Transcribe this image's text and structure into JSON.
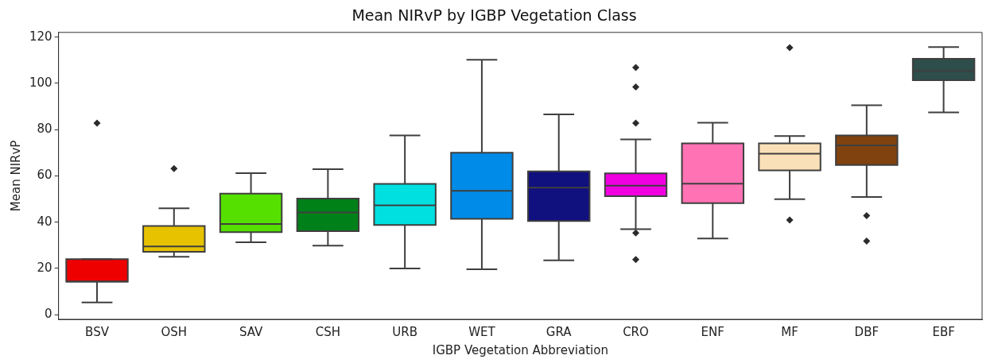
{
  "chart_data": {
    "type": "box",
    "title": "Mean NIRvP by IGBP Vegetation Class",
    "xlabel": "IGBP Vegetation Abbreviation",
    "ylabel": "Mean NIRvP",
    "categories": [
      "BSV",
      "OSH",
      "SAV",
      "CSH",
      "URB",
      "WET",
      "GRA",
      "CRO",
      "ENF",
      "MF",
      "DBF",
      "EBF"
    ],
    "colors": [
      "#ee0000",
      "#e6c200",
      "#55e000",
      "#008018",
      "#00e0e0",
      "#008be8",
      "#10107f",
      "#f000e0",
      "#ff72b4",
      "#fae0b8",
      "#80420f",
      "#2d4e4b"
    ],
    "boxes": [
      {
        "low": 5.3,
        "q1": 14.3,
        "median": 14.3,
        "q3": 24,
        "high": 24,
        "outliers": [
          82.8
        ]
      },
      {
        "low": 25,
        "q1": 27.2,
        "median": 29.5,
        "q3": 38.3,
        "high": 46,
        "outliers": [
          63.1
        ]
      },
      {
        "low": 31.3,
        "q1": 35.7,
        "median": 39.2,
        "q3": 52.3,
        "high": 61.2
      },
      {
        "low": 29.8,
        "q1": 36.1,
        "median": 44.2,
        "q3": 50.2,
        "high": 62.9
      },
      {
        "low": 20,
        "q1": 38.8,
        "median": 47.3,
        "q3": 56.5,
        "high": 77.5
      },
      {
        "low": 19.6,
        "q1": 41.4,
        "median": 53.5,
        "q3": 70,
        "high": 110.2
      },
      {
        "low": 23.5,
        "q1": 40.5,
        "median": 54.9,
        "q3": 61.9,
        "high": 86.6
      },
      {
        "low": 37,
        "q1": 51.2,
        "median": 55.8,
        "q3": 61.1,
        "high": 75.8,
        "outliers": [
          106.8,
          98.4,
          82.8,
          35.3,
          23.8
        ]
      },
      {
        "low": 32.9,
        "q1": 48.2,
        "median": 56.6,
        "q3": 74,
        "high": 83
      },
      {
        "low": 49.9,
        "q1": 62.4,
        "median": 69.6,
        "q3": 74,
        "high": 77.2,
        "outliers": [
          115.4,
          40.9
        ]
      },
      {
        "low": 50.9,
        "q1": 64.7,
        "median": 73.2,
        "q3": 77.5,
        "high": 90.5,
        "outliers": [
          42.8,
          31.8
        ]
      },
      {
        "low": 87.4,
        "q1": 101.3,
        "median": 105.4,
        "q3": 110.6,
        "high": 115.7
      }
    ],
    "ylim": [
      -2,
      122
    ],
    "yticks": [
      0,
      20,
      40,
      60,
      80,
      100,
      120
    ],
    "grid": false,
    "legend": false,
    "marker": "diamond"
  }
}
